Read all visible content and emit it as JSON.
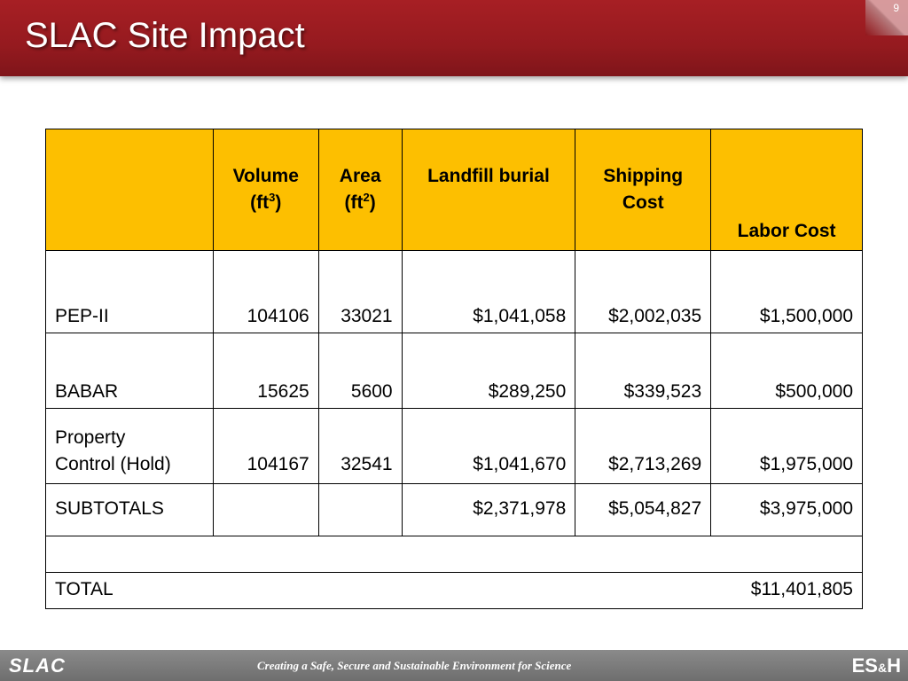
{
  "slide": {
    "title": "SLAC Site Impact",
    "page_number": "9"
  },
  "table": {
    "headers": {
      "col0": "",
      "volume": "Volume",
      "volume_unit_pre": "(ft",
      "volume_unit_exp": "3",
      "volume_unit_post": ")",
      "area": "Area",
      "area_unit_pre": "(ft",
      "area_unit_exp": "2",
      "area_unit_post": ")",
      "landfill": "Landfill burial",
      "shipping_line1": "Shipping",
      "shipping_line2": "Cost",
      "labor": "Labor Cost"
    },
    "rows": [
      {
        "label": "PEP-II",
        "volume": "104106",
        "area": "33021",
        "landfill": "$1,041,058",
        "shipping": "$2,002,035",
        "labor": "$1,500,000"
      },
      {
        "label": "BABAR",
        "volume": "15625",
        "area": "5600",
        "landfill": "$289,250",
        "shipping": "$339,523",
        "labor": "$500,000"
      },
      {
        "label_line1": "Property",
        "label_line2": "Control (Hold)",
        "volume": "104167",
        "area": "32541",
        "landfill": "$1,041,670",
        "shipping": "$2,713,269",
        "labor": "$1,975,000"
      }
    ],
    "subtotals": {
      "label": "SUBTOTALS",
      "landfill": "$2,371,978",
      "shipping": "$5,054,827",
      "labor": "$3,975,000"
    },
    "total": {
      "label": "TOTAL",
      "value": "$11,401,805"
    }
  },
  "footer": {
    "left_logo": "SLAC",
    "tagline": "Creating a Safe, Secure and Sustainable Environment for Science",
    "right_logo_a": "ES",
    "right_logo_amp": "&",
    "right_logo_b": "H"
  },
  "colors": {
    "header_red": "#a71f24",
    "table_header": "#fdbf00",
    "footer_gray": "#7a7a7a"
  }
}
